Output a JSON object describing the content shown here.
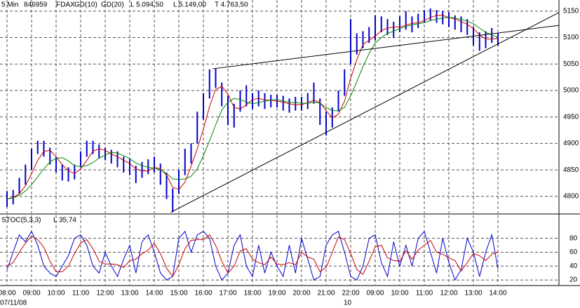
{
  "chart_data": {
    "type": "ohlc",
    "interval": "5 Min",
    "contract": "846959",
    "stats": [
      "L 5.094,50",
      "L 5.149,00",
      "T 4.763,50"
    ],
    "categories": [
      "08:00",
      null,
      null,
      null,
      "09:00",
      null,
      null,
      null,
      "10:00",
      null,
      null,
      null,
      "11:00",
      null,
      null,
      null,
      "12:00",
      null,
      null,
      null,
      "13:00",
      null,
      null,
      null,
      "14:00",
      null,
      null,
      null,
      "15:00",
      null,
      null,
      null,
      "16:00",
      null,
      null,
      null,
      "17:00",
      null,
      null,
      null,
      "18:00",
      null,
      null,
      null,
      "19:00",
      null,
      null,
      null,
      "20:00",
      null,
      null,
      null,
      "21:00",
      null,
      null,
      null,
      "22:00",
      null,
      null,
      null,
      "09:00",
      null,
      null,
      null,
      "10:00",
      null,
      null,
      null,
      "11:00",
      null,
      null,
      null,
      "12:00",
      null,
      null,
      null,
      "13:00",
      null,
      null,
      null,
      "14:00"
    ],
    "dates": [
      "07/11/08",
      null,
      null,
      null,
      null,
      null,
      null,
      null,
      null,
      null,
      null,
      null,
      null,
      null,
      null,
      null,
      null,
      null,
      null,
      null,
      null,
      null,
      null,
      null,
      null,
      null,
      null,
      null,
      null,
      null,
      null,
      null,
      null,
      null,
      null,
      null,
      null,
      null,
      null,
      null,
      null,
      null,
      null,
      null,
      null,
      null,
      null,
      null,
      null,
      null,
      null,
      null,
      null,
      null,
      null,
      null,
      "10",
      null,
      null,
      null,
      null,
      null,
      null,
      null,
      null,
      null,
      null,
      null,
      null,
      null,
      null,
      null,
      null,
      null,
      null,
      null,
      null,
      null,
      null,
      null,
      null
    ],
    "ylim": [
      4768,
      5171
    ],
    "yticks": [
      4800,
      4850,
      4900,
      4950,
      5000,
      5050,
      5100,
      5150
    ],
    "grid": true,
    "series": [
      {
        "name": "FDAX",
        "kind": "range",
        "color": "#0000cc",
        "high": [
          4810,
          4812,
          4835,
          4860,
          4890,
          4905,
          4905,
          4892,
          4875,
          4860,
          4855,
          4860,
          4885,
          4905,
          4905,
          4898,
          4892,
          4888,
          4885,
          4875,
          4870,
          4858,
          4865,
          4870,
          4875,
          4862,
          4845,
          4815,
          4850,
          4890,
          4900,
          4960,
          4995,
          5040,
          5042,
          5015,
          4990,
          4975,
          5000,
          5010,
          4995,
          5000,
          4995,
          4992,
          4992,
          4990,
          4985,
          4988,
          4988,
          4995,
          5015,
          4985,
          4960,
          4968,
          5000,
          5040,
          5135,
          5108,
          5112,
          5120,
          5142,
          5140,
          5135,
          5130,
          5140,
          5150,
          5140,
          5145,
          5152,
          5155,
          5152,
          5150,
          5148,
          5142,
          5140,
          5135,
          5120,
          5110,
          5112,
          5118,
          5108
        ],
        "low": [
          4780,
          4785,
          4805,
          4822,
          4850,
          4880,
          4875,
          4860,
          4845,
          4830,
          4828,
          4832,
          4855,
          4875,
          4880,
          4872,
          4868,
          4862,
          4855,
          4845,
          4840,
          4825,
          4835,
          4842,
          4845,
          4822,
          4795,
          4770,
          4805,
          4840,
          4862,
          4900,
          4945,
          4985,
          5005,
          4970,
          4935,
          4930,
          4960,
          4970,
          4965,
          4970,
          4965,
          4968,
          4968,
          4962,
          4958,
          4962,
          4962,
          4965,
          4975,
          4935,
          4915,
          4930,
          4960,
          4990,
          5050,
          5068,
          5080,
          5090,
          5095,
          5110,
          5105,
          5100,
          5110,
          5115,
          5110,
          5118,
          5128,
          5132,
          5128,
          5125,
          5120,
          5115,
          5110,
          5105,
          5085,
          5075,
          5080,
          5090,
          5085
        ]
      },
      {
        "name": "GD(10)",
        "kind": "line",
        "color": "#cc0000",
        "values": [
          4795,
          4798,
          4805,
          4820,
          4843,
          4868,
          4885,
          4887,
          4875,
          4860,
          4848,
          4843,
          4852,
          4868,
          4885,
          4890,
          4887,
          4880,
          4875,
          4868,
          4862,
          4852,
          4848,
          4848,
          4855,
          4852,
          4840,
          4817,
          4813,
          4827,
          4857,
          4890,
          4927,
          4970,
          5002,
          5008,
          4993,
          4968,
          4965,
          4973,
          4983,
          4985,
          4982,
          4982,
          4980,
          4978,
          4975,
          4973,
          4973,
          4977,
          4982,
          4977,
          4962,
          4948,
          4955,
          4980,
          5023,
          5058,
          5087,
          5095,
          5103,
          5113,
          5118,
          5120,
          5120,
          5123,
          5127,
          5128,
          5132,
          5138,
          5142,
          5142,
          5138,
          5135,
          5130,
          5125,
          5117,
          5105,
          5097,
          5097,
          5098
        ]
      },
      {
        "name": "GD(20)",
        "kind": "line",
        "color": "#008800",
        "values": [
          4795,
          4797,
          4802,
          4810,
          4822,
          4837,
          4852,
          4865,
          4872,
          4873,
          4867,
          4858,
          4856,
          4858,
          4864,
          4872,
          4878,
          4883,
          4882,
          4877,
          4871,
          4863,
          4858,
          4855,
          4853,
          4850,
          4843,
          4833,
          4832,
          4833,
          4838,
          4852,
          4877,
          4905,
          4935,
          4963,
          4978,
          4985,
          4983,
          4978,
          4975,
          4977,
          4980,
          4982,
          4983,
          4980,
          4978,
          4977,
          4976,
          4976,
          4978,
          4976,
          4968,
          4962,
          4962,
          4968,
          4990,
          5017,
          5045,
          5070,
          5090,
          5100,
          5108,
          5112,
          5117,
          5121,
          5124,
          5126,
          5128,
          5132,
          5135,
          5137,
          5138,
          5137,
          5134,
          5131,
          5126,
          5118,
          5110,
          5105,
          5101
        ]
      }
    ],
    "trendlines": [
      {
        "x": [
          26.7,
          89.9
        ],
        "y": [
          4770,
          5147
        ]
      },
      {
        "x": [
          33.5,
          89.9
        ],
        "y": [
          5041,
          5123
        ]
      }
    ],
    "indicator": {
      "name": "STOC(5,3,3)",
      "stat": "L 35,74",
      "ylim": [
        13,
        113
      ],
      "yticks": [
        20,
        40,
        60,
        80
      ],
      "series": [
        {
          "color": "#0000cc",
          "values": [
            35,
            60,
            85,
            75,
            90,
            70,
            40,
            30,
            25,
            40,
            55,
            80,
            85,
            70,
            40,
            30,
            60,
            40,
            25,
            50,
            70,
            30,
            75,
            85,
            60,
            30,
            20,
            25,
            80,
            90,
            60,
            85,
            90,
            80,
            40,
            20,
            30,
            70,
            85,
            40,
            25,
            70,
            30,
            60,
            40,
            25,
            70,
            30,
            80,
            50,
            20,
            25,
            70,
            85,
            90,
            60,
            25,
            20,
            40,
            80,
            85,
            45,
            25,
            75,
            40,
            70,
            40,
            80,
            90,
            60,
            30,
            80,
            45,
            20,
            35,
            80,
            60,
            25,
            60,
            85,
            36
          ]
        },
        {
          "color": "#cc0000",
          "values": [
            40,
            45,
            60,
            73,
            83,
            78,
            67,
            47,
            32,
            32,
            40,
            58,
            73,
            78,
            65,
            47,
            43,
            43,
            42,
            38,
            48,
            50,
            58,
            63,
            73,
            58,
            37,
            25,
            42,
            65,
            77,
            78,
            78,
            85,
            70,
            47,
            30,
            40,
            62,
            65,
            50,
            45,
            42,
            53,
            43,
            42,
            45,
            42,
            60,
            53,
            50,
            32,
            38,
            60,
            82,
            78,
            58,
            35,
            28,
            47,
            68,
            70,
            52,
            48,
            47,
            62,
            50,
            63,
            70,
            77,
            60,
            57,
            52,
            48,
            33,
            45,
            58,
            55,
            48,
            57,
            60
          ]
        }
      ]
    }
  }
}
